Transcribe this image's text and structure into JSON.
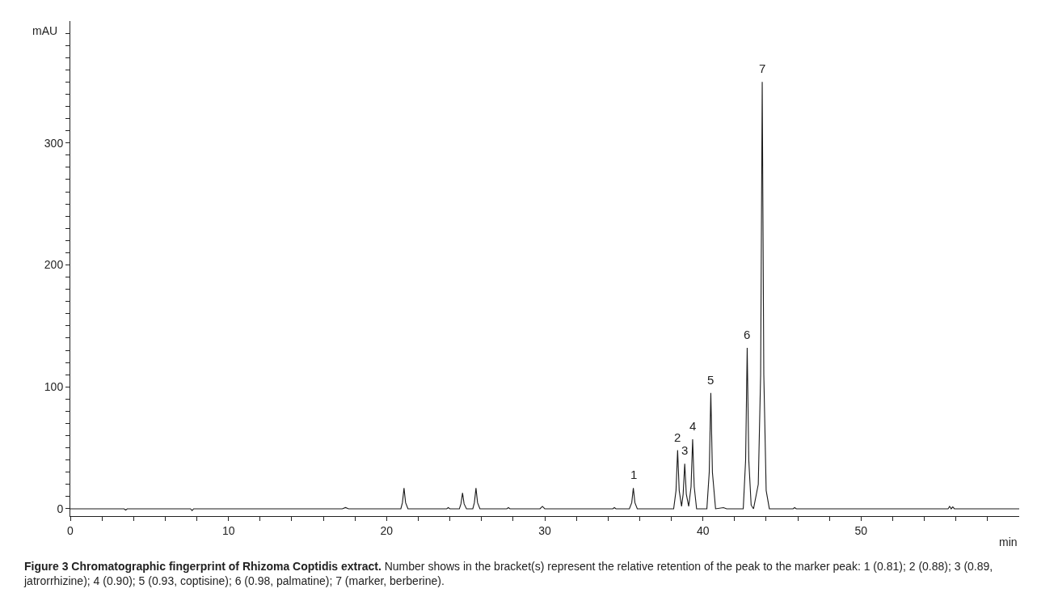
{
  "chart_data": {
    "type": "line",
    "title": "Figure 3 Chromatographic fingerprint of Rhizoma Coptidis extract.",
    "xlabel": "min",
    "ylabel": "mAU",
    "x": [
      0,
      3.4,
      3.5,
      3.6,
      7.6,
      7.7,
      7.8,
      17.2,
      17.4,
      17.6,
      20.9,
      21.0,
      21.1,
      21.2,
      21.35,
      23.8,
      23.9,
      24.0,
      24.6,
      24.7,
      24.8,
      24.9,
      25.05,
      25.45,
      25.55,
      25.65,
      25.75,
      25.9,
      27.6,
      27.7,
      27.8,
      29.7,
      29.85,
      30,
      34.3,
      34.4,
      34.5,
      35.35,
      35.5,
      35.6,
      35.7,
      35.85,
      38.15,
      38.3,
      38.4,
      38.5,
      38.65,
      38.75,
      38.85,
      38.95,
      39.1,
      39.25,
      39.35,
      39.45,
      39.6,
      40.25,
      40.4,
      40.5,
      40.6,
      40.8,
      41.3,
      41.5,
      42.55,
      42.7,
      42.8,
      42.9,
      43.05,
      43.2,
      43.5,
      43.65,
      43.75,
      43.85,
      44.0,
      44.2,
      45.7,
      45.8,
      45.9,
      55.5,
      55.6,
      55.7,
      55.8,
      55.9,
      60
    ],
    "series": [
      {
        "color": "#1a1a1a",
        "values": [
          0,
          0,
          -1,
          0,
          0,
          -1.5,
          0,
          0,
          1,
          0,
          0,
          5,
          17,
          5,
          0,
          0,
          1,
          0,
          0,
          4,
          13,
          4,
          0,
          0,
          5,
          17,
          5,
          0,
          0,
          1,
          0,
          0,
          2,
          0,
          0,
          1,
          0,
          0,
          5,
          17,
          5,
          0,
          0,
          15,
          48,
          15,
          2,
          12,
          37,
          12,
          2,
          18,
          57,
          18,
          0,
          0,
          30,
          95,
          30,
          0,
          1,
          0,
          0,
          40,
          132,
          40,
          3,
          0,
          20,
          110,
          350,
          110,
          15,
          0,
          0,
          1,
          0,
          0,
          2,
          0,
          1.5,
          0,
          0
        ]
      }
    ],
    "xlim": [
      0,
      60
    ],
    "ylim": [
      -6,
      400
    ],
    "xticks": [
      0,
      {
        "value": 2,
        "label": null
      },
      {
        "value": 4,
        "label": null
      },
      {
        "value": 6,
        "label": null
      },
      {
        "value": 8,
        "label": null
      },
      10,
      {
        "value": 12,
        "label": null
      },
      {
        "value": 14,
        "label": null
      },
      {
        "value": 16,
        "label": null
      },
      {
        "value": 18,
        "label": null
      },
      20,
      {
        "value": 22,
        "label": null
      },
      {
        "value": 24,
        "label": null
      },
      {
        "value": 26,
        "label": null
      },
      {
        "value": 28,
        "label": null
      },
      30,
      {
        "value": 32,
        "label": null
      },
      {
        "value": 34,
        "label": null
      },
      {
        "value": 36,
        "label": null
      },
      {
        "value": 38,
        "label": null
      },
      40,
      {
        "value": 42,
        "label": null
      },
      {
        "value": 44,
        "label": null
      },
      {
        "value": 46,
        "label": null
      },
      {
        "value": 48,
        "label": null
      },
      50,
      {
        "value": 52,
        "label": null
      },
      {
        "value": 54,
        "label": null
      },
      {
        "value": 56,
        "label": null
      },
      {
        "value": 58,
        "label": null
      }
    ],
    "yticks": [
      0,
      {
        "value": 10,
        "label": null
      },
      {
        "value": 20,
        "label": null
      },
      {
        "value": 30,
        "label": null
      },
      {
        "value": 40,
        "label": null
      },
      {
        "value": 50,
        "label": null
      },
      {
        "value": 60,
        "label": null
      },
      {
        "value": 70,
        "label": null
      },
      {
        "value": 80,
        "label": null
      },
      {
        "value": 90,
        "label": null
      },
      100,
      {
        "value": 110,
        "label": null
      },
      {
        "value": 120,
        "label": null
      },
      {
        "value": 130,
        "label": null
      },
      {
        "value": 140,
        "label": null
      },
      {
        "value": 150,
        "label": null
      },
      {
        "value": 160,
        "label": null
      },
      {
        "value": 170,
        "label": null
      },
      {
        "value": 180,
        "label": null
      },
      {
        "value": 190,
        "label": null
      },
      200,
      {
        "value": 210,
        "label": null
      },
      {
        "value": 220,
        "label": null
      },
      {
        "value": 230,
        "label": null
      },
      {
        "value": 240,
        "label": null
      },
      {
        "value": 250,
        "label": null
      },
      {
        "value": 260,
        "label": null
      },
      {
        "value": 270,
        "label": null
      },
      {
        "value": 280,
        "label": null
      },
      {
        "value": 290,
        "label": null
      },
      300,
      {
        "value": 310,
        "label": null
      },
      {
        "value": 320,
        "label": null
      },
      {
        "value": 330,
        "label": null
      },
      {
        "value": 340,
        "label": null
      },
      {
        "value": 350,
        "label": null
      },
      {
        "value": 360,
        "label": null
      },
      {
        "value": 370,
        "label": null
      },
      {
        "value": 380,
        "label": null
      },
      {
        "value": 390,
        "label": null
      }
    ],
    "marker": "none",
    "line_style": "solid",
    "annotations": [
      {
        "text": "1",
        "x": 35.6,
        "y": 17
      },
      {
        "text": "2",
        "x": 38.4,
        "y": 48
      },
      {
        "text": "3",
        "x": 38.85,
        "y": 37
      },
      {
        "text": "4",
        "x": 39.35,
        "y": 57
      },
      {
        "text": "5",
        "x": 40.5,
        "y": 95
      },
      {
        "text": "6",
        "x": 42.8,
        "y": 132
      },
      {
        "text": "7",
        "x": 43.75,
        "y": 350
      },
      "Number shows in the bracket(s) represent the relative retention of the peak to the marker peak: 1 (0.81); 2 (0.88); 3 (0.89, jatrorrhizine); 4 (0.90); 5 (0.93, coptisine); 6 (0.98, palmatine); 7 (marker, berberine)."
    ]
  }
}
